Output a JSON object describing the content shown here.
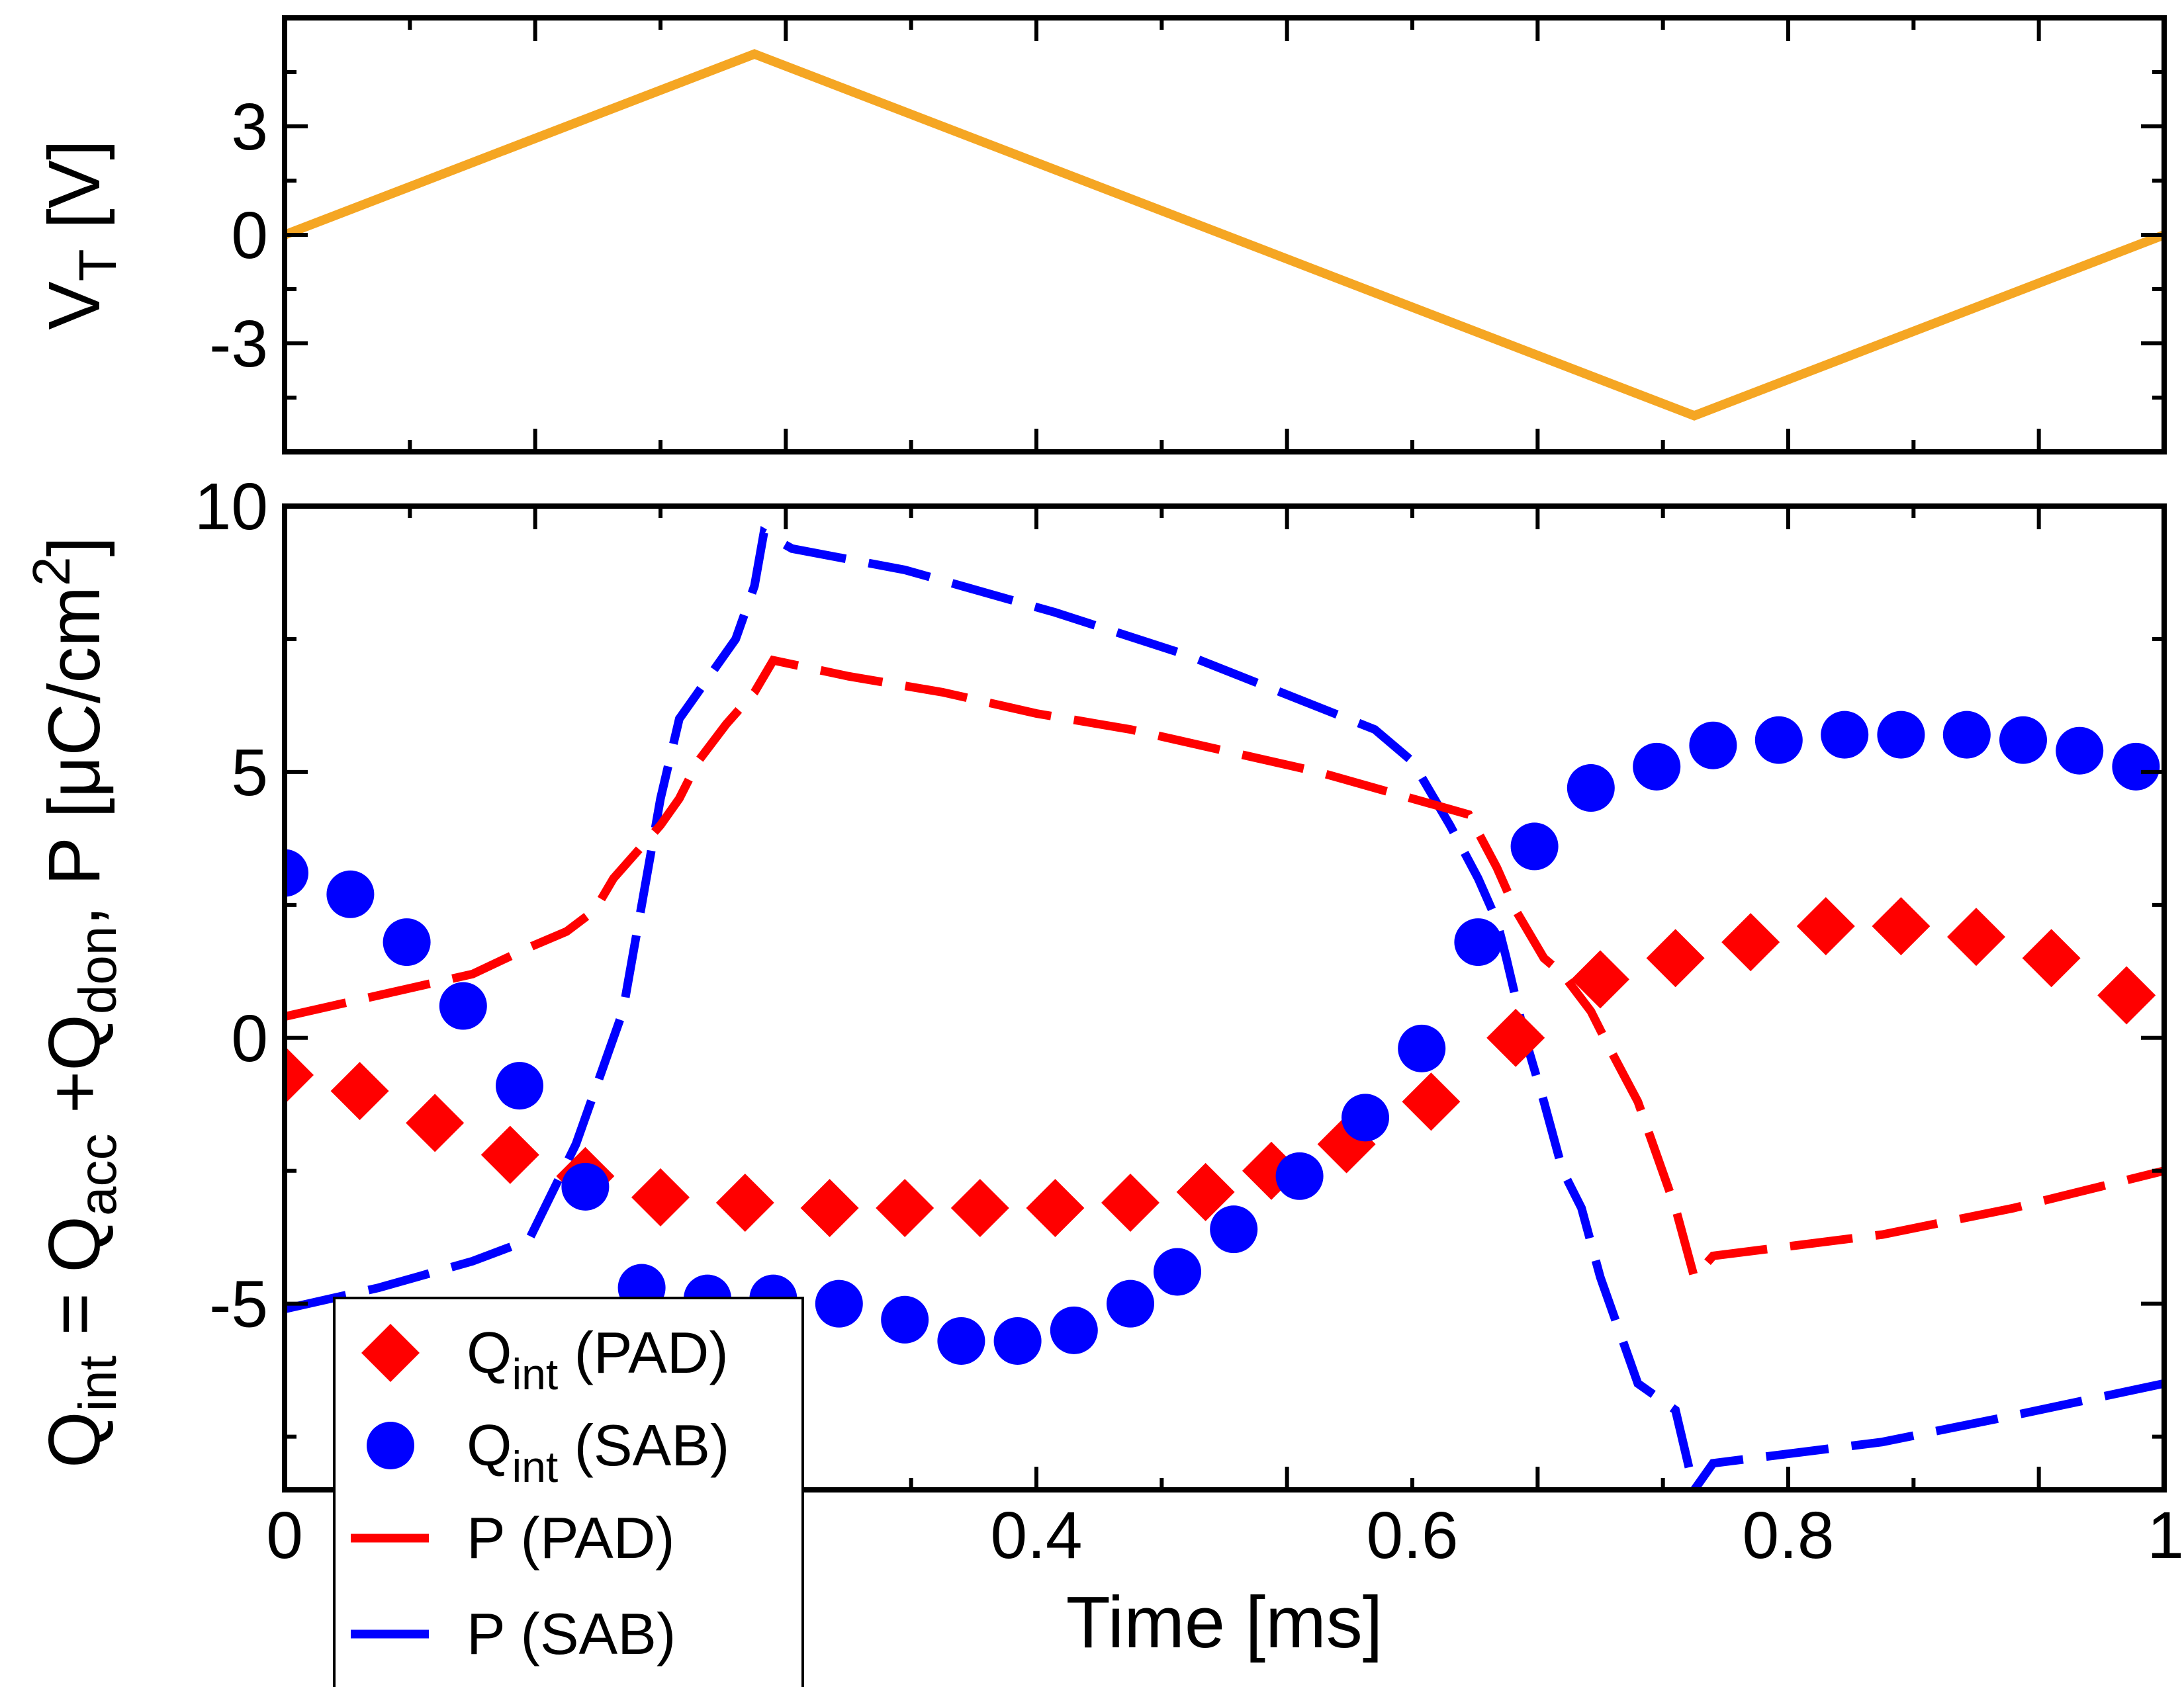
{
  "chart_data": [
    {
      "type": "line",
      "panel": "top",
      "ylabel": "V",
      "ylabel_sub": "T",
      "ylabel_unit": " [V]",
      "xlim": [
        0,
        1
      ],
      "ylim": [
        -6,
        6
      ],
      "yticks": [
        3,
        0,
        -3
      ],
      "ytick_labels": [
        "3",
        "0",
        "-3"
      ],
      "series": [
        {
          "name": "V_T",
          "color": "#f5a623",
          "x": [
            0,
            0.25,
            0.75,
            1.0
          ],
          "y": [
            0,
            5,
            -5,
            0
          ]
        }
      ]
    },
    {
      "type": "scatter",
      "panel": "bottom",
      "xlabel": "Time [ms]",
      "ylabel_parts": {
        "q": "Q",
        "int": "int",
        "eq": " = Q",
        "acc": "acc",
        "plus": " +Q",
        "don": "don",
        "rest": ", P [μC/cm",
        "sq": "2",
        "close": "]"
      },
      "xlim": [
        0,
        1
      ],
      "ylim": [
        -8.5,
        10
      ],
      "xticks": [
        0,
        0.4,
        0.6,
        0.8,
        1
      ],
      "xtick_labels": [
        "0",
        "0.4",
        "0.6",
        "0.8",
        "1"
      ],
      "yticks": [
        10,
        5,
        0,
        -5
      ],
      "ytick_labels": [
        "10",
        "5",
        "0",
        "-5"
      ],
      "series": [
        {
          "name": "P (SAB)",
          "kind": "dashed-line",
          "color": "#0000ff",
          "x": [
            0,
            0.05,
            0.1,
            0.13,
            0.155,
            0.17,
            0.18,
            0.19,
            0.2,
            0.21,
            0.22,
            0.24,
            0.25,
            0.255,
            0.27,
            0.33,
            0.41,
            0.48,
            0.53,
            0.58,
            0.6,
            0.62,
            0.635,
            0.645,
            0.65,
            0.66,
            0.67,
            0.68,
            0.69,
            0.7,
            0.71,
            0.72,
            0.74,
            0.75,
            0.76,
            0.85,
            0.92,
            1.0
          ],
          "y": [
            -5.1,
            -4.7,
            -4.2,
            -3.8,
            -2.0,
            -0.5,
            0.5,
            2.5,
            4.5,
            6.0,
            6.5,
            7.5,
            8.5,
            9.5,
            9.2,
            8.8,
            8.0,
            7.2,
            6.5,
            5.8,
            5.2,
            4.0,
            3.0,
            2.2,
            1.5,
            0.0,
            -1.2,
            -2.5,
            -3.2,
            -4.5,
            -5.5,
            -6.5,
            -7.0,
            -8.5,
            -8.0,
            -7.6,
            -7.1,
            -6.5
          ]
        },
        {
          "name": "P (PAD)",
          "kind": "dashed-line",
          "color": "#ff0000",
          "x": [
            0,
            0.05,
            0.1,
            0.13,
            0.15,
            0.165,
            0.175,
            0.19,
            0.2,
            0.21,
            0.22,
            0.235,
            0.25,
            0.26,
            0.3,
            0.35,
            0.4,
            0.45,
            0.5,
            0.55,
            0.6,
            0.63,
            0.645,
            0.655,
            0.67,
            0.68,
            0.695,
            0.705,
            0.72,
            0.73,
            0.74,
            0.75,
            0.76,
            0.85,
            0.92,
            1.0
          ],
          "y": [
            0.4,
            0.8,
            1.2,
            1.7,
            2.0,
            2.4,
            3.0,
            3.6,
            4.0,
            4.5,
            5.2,
            5.9,
            6.5,
            7.1,
            6.8,
            6.5,
            6.1,
            5.8,
            5.4,
            5.0,
            4.5,
            4.2,
            3.2,
            2.4,
            1.5,
            1.2,
            0.5,
            -0.2,
            -1.2,
            -2.2,
            -3.2,
            -4.5,
            -4.1,
            -3.7,
            -3.2,
            -2.5
          ]
        },
        {
          "name": "Q_int (PAD)",
          "kind": "diamond",
          "color": "#ff0000",
          "x": [
            0.0,
            0.04,
            0.08,
            0.12,
            0.16,
            0.2,
            0.245,
            0.29,
            0.33,
            0.37,
            0.41,
            0.45,
            0.49,
            0.525,
            0.565,
            0.61,
            0.655,
            0.7,
            0.74,
            0.78,
            0.82,
            0.86,
            0.9,
            0.94,
            0.98
          ],
          "y": [
            -0.7,
            -1.0,
            -1.6,
            -2.2,
            -2.6,
            -3.0,
            -3.1,
            -3.2,
            -3.2,
            -3.2,
            -3.2,
            -3.1,
            -2.9,
            -2.5,
            -2.0,
            -1.2,
            0.0,
            1.1,
            1.5,
            1.8,
            2.1,
            2.1,
            1.9,
            1.5,
            0.8
          ]
        },
        {
          "name": "Q_int (SAB)",
          "kind": "circle",
          "color": "#0000ff",
          "x": [
            0.0,
            0.035,
            0.065,
            0.095,
            0.125,
            0.16,
            0.19,
            0.225,
            0.26,
            0.295,
            0.33,
            0.36,
            0.39,
            0.42,
            0.45,
            0.475,
            0.505,
            0.54,
            0.575,
            0.605,
            0.635,
            0.665,
            0.695,
            0.73,
            0.76,
            0.795,
            0.83,
            0.86,
            0.895,
            0.925,
            0.955,
            0.985
          ],
          "y": [
            3.1,
            2.7,
            1.8,
            0.6,
            -0.9,
            -2.8,
            -4.7,
            -4.9,
            -4.9,
            -5.0,
            -5.3,
            -5.7,
            -5.7,
            -5.5,
            -5.0,
            -4.4,
            -3.6,
            -2.6,
            -1.5,
            -0.2,
            1.8,
            3.6,
            4.7,
            5.1,
            5.5,
            5.6,
            5.7,
            5.7,
            5.7,
            5.6,
            5.4,
            5.1
          ]
        }
      ],
      "legend": {
        "position": "bottom-left",
        "entries": [
          {
            "main": "Q",
            "sub": "int",
            "rest": " (PAD)",
            "marker": "diamond",
            "color": "#ff0000"
          },
          {
            "main": "Q",
            "sub": "int",
            "rest": " (SAB)",
            "marker": "circle",
            "color": "#0000ff"
          },
          {
            "main": "P (PAD)",
            "sub": "",
            "rest": "",
            "marker": "dash",
            "color": "#ff0000"
          },
          {
            "main": "P (SAB)",
            "sub": "",
            "rest": "",
            "marker": "dash",
            "color": "#0000ff"
          }
        ]
      }
    }
  ]
}
